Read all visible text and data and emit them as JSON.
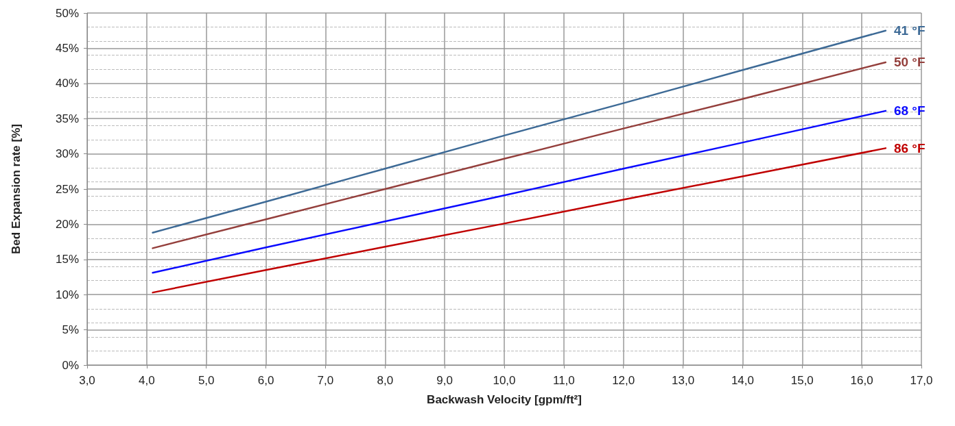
{
  "chart_data": {
    "type": "line",
    "xlabel": "Backwash Velocity [gpm/ft²]",
    "ylabel": "Bed Expansion rate [%]",
    "xlim": [
      3,
      17
    ],
    "xticks": [
      {
        "value": 3,
        "label": "3,0"
      },
      {
        "value": 4,
        "label": "4,0"
      },
      {
        "value": 5,
        "label": "5,0"
      },
      {
        "value": 6,
        "label": "6,0"
      },
      {
        "value": 7,
        "label": "7,0"
      },
      {
        "value": 8,
        "label": "8,0"
      },
      {
        "value": 9,
        "label": "9,0"
      },
      {
        "value": 10,
        "label": "10,0"
      },
      {
        "value": 11,
        "label": "11,0"
      },
      {
        "value": 12,
        "label": "12,0"
      },
      {
        "value": 13,
        "label": "13,0"
      },
      {
        "value": 14,
        "label": "14,0"
      },
      {
        "value": 15,
        "label": "15,0"
      },
      {
        "value": 16,
        "label": "16,0"
      },
      {
        "value": 17,
        "label": "17,0"
      }
    ],
    "ylim": [
      0,
      50
    ],
    "yticks": [
      {
        "value": 0,
        "label": "0%"
      },
      {
        "value": 5,
        "label": "5%"
      },
      {
        "value": 10,
        "label": "10%"
      },
      {
        "value": 15,
        "label": "15%"
      },
      {
        "value": 20,
        "label": "20%"
      },
      {
        "value": 25,
        "label": "25%"
      },
      {
        "value": 30,
        "label": "30%"
      },
      {
        "value": 35,
        "label": "35%"
      },
      {
        "value": 40,
        "label": "40%"
      },
      {
        "value": 45,
        "label": "45%"
      },
      {
        "value": 50,
        "label": "50%"
      }
    ],
    "x": [
      4.1,
      6,
      8,
      10,
      12,
      14,
      16.4
    ],
    "series": [
      {
        "name": "41 °F",
        "color": "#3d6a96",
        "values": [
          18.8,
          23.2,
          27.9,
          32.6,
          37.2,
          41.9,
          47.5
        ]
      },
      {
        "name": "50 °F",
        "color": "#943f3c",
        "values": [
          16.6,
          20.7,
          25.0,
          29.3,
          33.6,
          37.8,
          43.0
        ]
      },
      {
        "name": "68 °F",
        "color": "#0a0aff",
        "values": [
          13.1,
          16.7,
          20.4,
          24.1,
          27.9,
          31.6,
          36.1
        ]
      },
      {
        "name": "86 °F",
        "color": "#c00000",
        "values": [
          10.3,
          13.5,
          16.8,
          20.1,
          23.5,
          26.8,
          30.8
        ]
      }
    ],
    "grid": true,
    "legend": false,
    "marker": "none",
    "line_style": "solid"
  }
}
